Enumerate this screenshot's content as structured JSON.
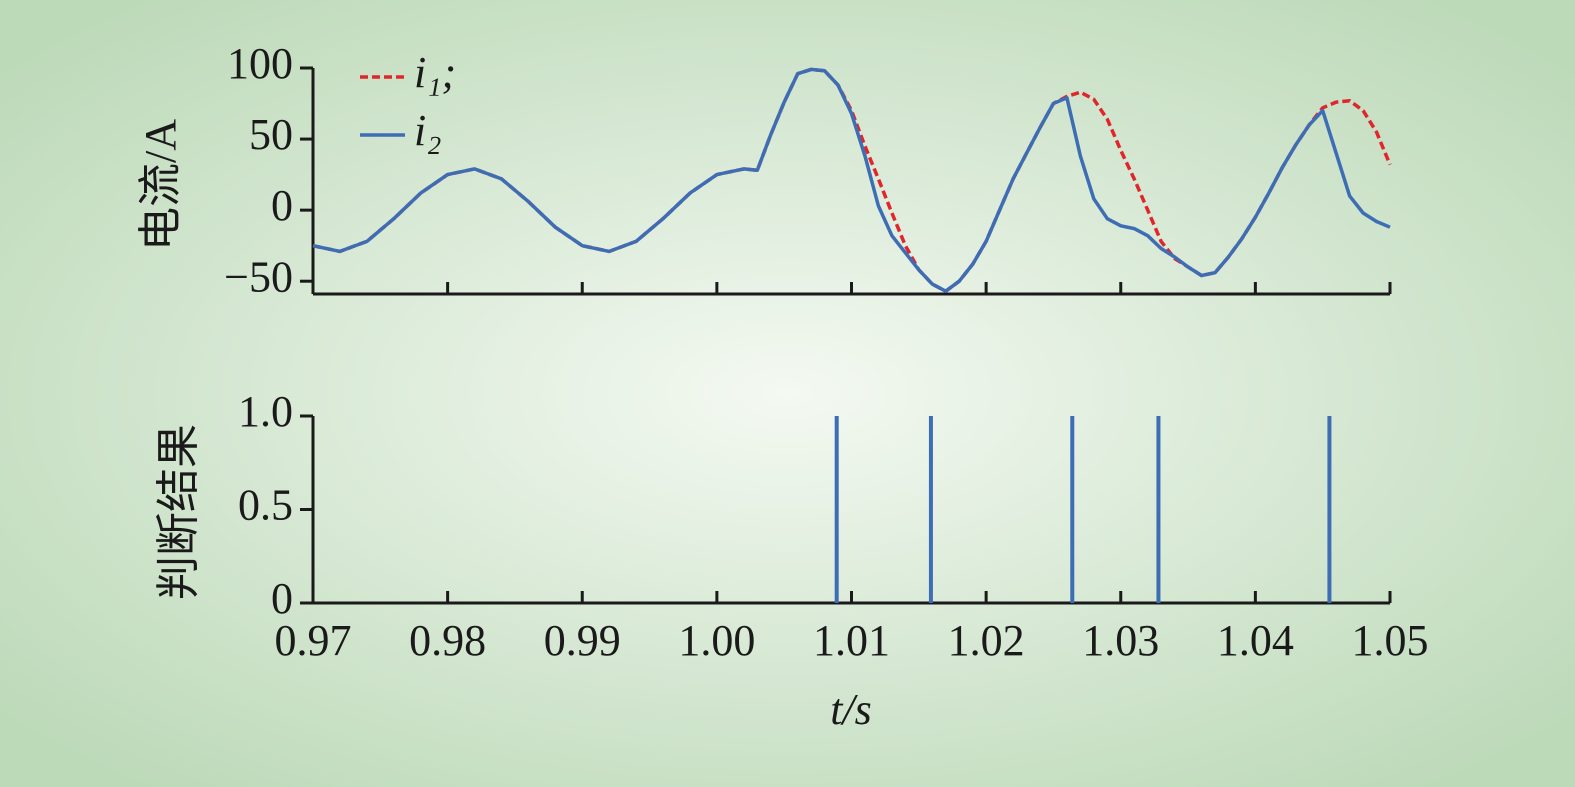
{
  "chart_data": [
    {
      "type": "line",
      "ylabel": "电流/A",
      "legend": "upper left",
      "x": [
        0.97,
        0.972,
        0.974,
        0.976,
        0.978,
        0.98,
        0.982,
        0.984,
        0.986,
        0.988,
        0.99,
        0.992,
        0.994,
        0.996,
        0.998,
        1.0,
        1.002,
        1.003,
        1.004,
        1.005,
        1.006,
        1.007,
        1.008,
        1.009,
        1.01,
        1.011,
        1.012,
        1.013,
        1.014,
        1.015,
        1.016,
        1.017,
        1.018,
        1.019,
        1.02,
        1.021,
        1.022,
        1.023,
        1.024,
        1.025,
        1.026,
        1.027,
        1.028,
        1.029,
        1.03,
        1.031,
        1.032,
        1.033,
        1.034,
        1.035,
        1.036,
        1.037,
        1.038,
        1.039,
        1.04,
        1.041,
        1.042,
        1.043,
        1.044,
        1.045,
        1.046,
        1.047,
        1.048,
        1.049,
        1.05
      ],
      "series": [
        {
          "name": "i₁;",
          "color": "#e0262b",
          "dashed": true,
          "values": [
            -25,
            -29,
            -22,
            -6,
            12,
            25,
            29,
            22,
            6,
            -12,
            -25,
            -29,
            -22,
            -6,
            12,
            25,
            29,
            28,
            53,
            76,
            96,
            99,
            98,
            88,
            70,
            45,
            22,
            -2,
            -25,
            -42,
            -52,
            -57,
            -50,
            -38,
            -22,
            0,
            22,
            40,
            58,
            75,
            80,
            83,
            78,
            64,
            42,
            22,
            0,
            -22,
            -34,
            -40,
            -46,
            -44,
            -33,
            -20,
            -5,
            12,
            30,
            46,
            60,
            72,
            76,
            77,
            70,
            55,
            32
          ]
        },
        {
          "name": "i₂",
          "color": "#3d6db4",
          "dashed": false,
          "values": [
            -25,
            -29,
            -22,
            -6,
            12,
            25,
            29,
            22,
            6,
            -12,
            -25,
            -29,
            -22,
            -6,
            12,
            25,
            29,
            28,
            53,
            76,
            96,
            99,
            98,
            88,
            68,
            38,
            3,
            -18,
            -30,
            -42,
            -52,
            -57,
            -50,
            -38,
            -22,
            0,
            22,
            40,
            58,
            75,
            79,
            38,
            8,
            -6,
            -11,
            -13,
            -18,
            -27,
            -33,
            -40,
            -46,
            -44,
            -33,
            -20,
            -5,
            12,
            30,
            46,
            60,
            70,
            40,
            10,
            -2,
            -8,
            -12
          ]
        }
      ],
      "ylim": [
        -59,
        100
      ],
      "yticks": [
        {
          "value": -50,
          "label": "−50"
        },
        0,
        50,
        100
      ]
    },
    {
      "type": "bar",
      "ylabel": "判断结果",
      "xlabel": "t/s",
      "color": "#3d6db4",
      "x": [
        1.0089,
        1.0159,
        1.0264,
        1.0328,
        1.0455
      ],
      "values": [
        1,
        1,
        1,
        1,
        1
      ],
      "xlim": [
        0.97,
        1.05
      ],
      "xticks": [
        0.97,
        0.98,
        0.99,
        {
          "value": 1,
          "label": "1.00"
        },
        1.01,
        1.02,
        1.03,
        1.04,
        1.05
      ],
      "ylim": [
        0,
        1
      ],
      "yticks": [
        0,
        0.5,
        {
          "value": 1,
          "label": "1.0"
        }
      ]
    }
  ]
}
